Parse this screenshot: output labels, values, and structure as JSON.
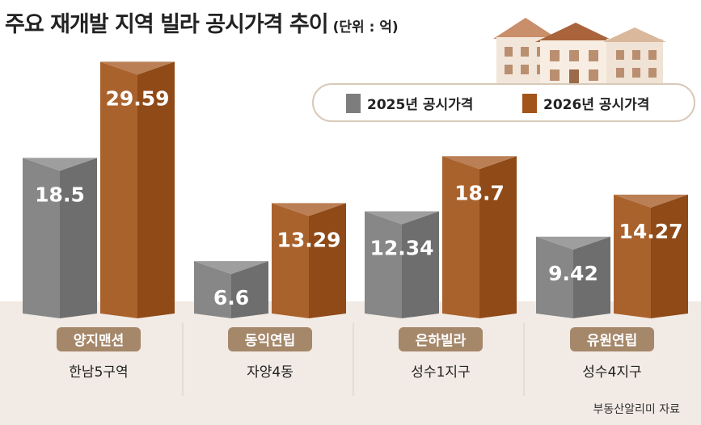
{
  "title": "주요 재개발 지역 빌라 공시가격 추이",
  "unit": "(단위 : 억)",
  "source": "부동산알리미 자료",
  "colors": {
    "gray": "#7d7d7d",
    "orange": "#a3541b",
    "band": "#f2ebe5",
    "pill": "#a5876a"
  },
  "chart_data": {
    "type": "bar",
    "categories": [
      {
        "name": "양지맨션",
        "area": "한남5구역"
      },
      {
        "name": "동익연립",
        "area": "자양4동"
      },
      {
        "name": "은하빌라",
        "area": "성수1지구"
      },
      {
        "name": "유원연립",
        "area": "성수4지구"
      }
    ],
    "series": [
      {
        "name": "2025년 공시가격",
        "color": "#7d7d7d",
        "values": [
          18.5,
          6.6,
          12.34,
          9.42
        ],
        "labels": [
          "18.5",
          "6.6",
          "12.34",
          "9.42"
        ]
      },
      {
        "name": "2026년 공시가격",
        "color": "#a3541b",
        "values": [
          29.59,
          13.29,
          18.7,
          14.27
        ],
        "labels": [
          "29.59",
          "13.29",
          "18.7",
          "14.27"
        ]
      }
    ],
    "ylim": [
      0,
      30
    ],
    "legend": "top-right",
    "grid": false
  }
}
